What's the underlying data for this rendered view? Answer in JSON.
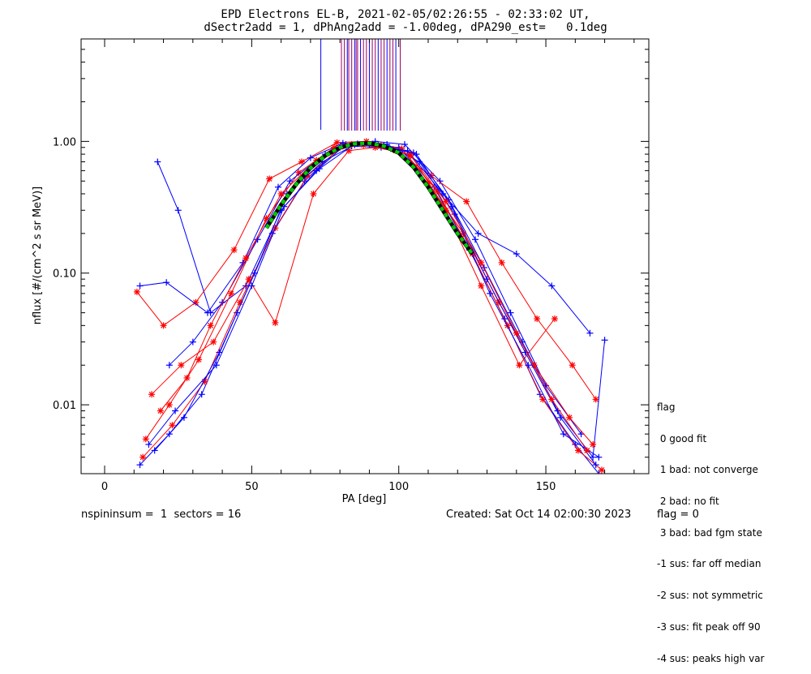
{
  "header": {
    "title_line1": "EPD Electrons EL-B, 2021-02-05/02:26:55 - 02:33:02 UT,",
    "title_line2": "dSectr2add = 1, dPhAng2add = -1.00deg, dPA290_est=   0.1deg"
  },
  "footer": {
    "left": "nspininsum =  1  sectors = 16",
    "created": "Created: Sat Oct 14 02:00:30 2023",
    "flag": "flag = 0"
  },
  "legend": {
    "title": "flag",
    "items": [
      " 0 good fit",
      " 1 bad: not converge",
      " 2 bad: no fit",
      " 3 bad: bad fgm state",
      "-1 sus: far off median",
      "-2 sus: not symmetric",
      "-3 sus: fit peak off 90",
      "-4 sus: peaks high var"
    ]
  },
  "colors": {
    "series_blue": "#0000ff",
    "series_red": "#ff0000",
    "fit_green": "#00cc00",
    "fit_black": "#000000",
    "marker_purple": "#990066"
  },
  "chart_data": {
    "type": "line",
    "xlabel": "PA [deg]",
    "ylabel": "nflux [#/(cm^2 s sr MeV)]",
    "xlim": [
      -8,
      185
    ],
    "ylim": [
      0.003,
      6
    ],
    "yscale": "log",
    "x_ticks": [
      0,
      50,
      100,
      150
    ],
    "x_tick_labels": [
      "0",
      "50",
      "100",
      "150"
    ],
    "y_ticks": [
      0.01,
      0.1,
      1.0
    ],
    "y_tick_labels": [
      "0.01",
      "0.10",
      "1.00"
    ],
    "series": [
      {
        "color": "blue",
        "x": [
          12,
          22,
          33,
          45,
          57,
          68,
          80,
          90,
          100,
          112,
          124,
          136,
          148,
          160,
          168
        ],
        "y": [
          0.0035,
          0.006,
          0.012,
          0.05,
          0.2,
          0.5,
          0.9,
          0.95,
          0.9,
          0.45,
          0.15,
          0.045,
          0.012,
          0.005,
          0.003
        ]
      },
      {
        "color": "red",
        "x": [
          13,
          23,
          34,
          46,
          58,
          69,
          81,
          91,
          101,
          113,
          125,
          137,
          149,
          161,
          169
        ],
        "y": [
          0.004,
          0.007,
          0.015,
          0.06,
          0.22,
          0.55,
          0.92,
          0.96,
          0.88,
          0.42,
          0.14,
          0.04,
          0.011,
          0.0045,
          0.0032
        ]
      },
      {
        "color": "blue",
        "x": [
          18,
          25,
          36,
          48,
          60,
          72,
          82,
          92,
          102,
          114,
          126,
          138,
          150,
          162
        ],
        "y": [
          0.7,
          0.3,
          0.05,
          0.08,
          0.3,
          0.6,
          0.95,
          1.0,
          0.95,
          0.5,
          0.18,
          0.05,
          0.014,
          0.006
        ]
      },
      {
        "color": "red",
        "x": [
          11,
          20,
          31,
          44,
          56,
          67,
          79,
          89,
          99,
          111,
          123,
          135,
          147,
          159,
          167
        ],
        "y": [
          0.072,
          0.04,
          0.06,
          0.15,
          0.52,
          0.7,
          0.98,
          1.0,
          0.85,
          0.55,
          0.35,
          0.12,
          0.045,
          0.02,
          0.011
        ]
      },
      {
        "color": "blue",
        "x": [
          12,
          21,
          35,
          47,
          59,
          70,
          81,
          93,
          103,
          115,
          127,
          140,
          152,
          165
        ],
        "y": [
          0.08,
          0.085,
          0.05,
          0.12,
          0.45,
          0.75,
          0.97,
          0.93,
          0.85,
          0.4,
          0.2,
          0.14,
          0.08,
          0.035
        ]
      },
      {
        "color": "red",
        "x": [
          16,
          26,
          37,
          49,
          58,
          71,
          83,
          92,
          104,
          116,
          128,
          141,
          153
        ],
        "y": [
          0.012,
          0.02,
          0.03,
          0.09,
          0.042,
          0.4,
          0.85,
          0.9,
          0.8,
          0.3,
          0.08,
          0.02,
          0.045
        ]
      },
      {
        "color": "blue",
        "x": [
          15,
          24,
          38,
          50,
          61,
          73,
          84,
          94,
          105,
          117,
          129,
          142,
          154,
          166,
          170
        ],
        "y": [
          0.005,
          0.009,
          0.02,
          0.08,
          0.32,
          0.62,
          0.92,
          0.9,
          0.82,
          0.36,
          0.11,
          0.03,
          0.009,
          0.004,
          0.031
        ]
      },
      {
        "color": "red",
        "x": [
          14,
          22,
          32,
          43,
          55,
          66,
          78,
          88,
          98,
          110,
          122,
          134,
          146,
          158,
          166
        ],
        "y": [
          0.0055,
          0.01,
          0.022,
          0.07,
          0.26,
          0.58,
          0.9,
          0.94,
          0.87,
          0.48,
          0.2,
          0.06,
          0.02,
          0.008,
          0.005
        ]
      },
      {
        "color": "blue",
        "x": [
          17,
          27,
          39,
          51,
          62,
          74,
          85,
          95,
          106,
          118,
          130,
          143,
          155,
          167
        ],
        "y": [
          0.0045,
          0.008,
          0.025,
          0.1,
          0.4,
          0.7,
          0.94,
          0.92,
          0.8,
          0.32,
          0.09,
          0.025,
          0.008,
          0.0035
        ]
      },
      {
        "color": "blue",
        "x": [
          22,
          30,
          40,
          52,
          63,
          75,
          86,
          96,
          107,
          119,
          131,
          144,
          156,
          168
        ],
        "y": [
          0.02,
          0.03,
          0.06,
          0.18,
          0.5,
          0.8,
          0.96,
          0.95,
          0.7,
          0.28,
          0.07,
          0.02,
          0.006,
          0.004
        ]
      },
      {
        "color": "red",
        "x": [
          19,
          28,
          36,
          48,
          60,
          72,
          84,
          94,
          104,
          116,
          128,
          140,
          152,
          164
        ],
        "y": [
          0.009,
          0.016,
          0.04,
          0.13,
          0.4,
          0.72,
          0.95,
          0.93,
          0.78,
          0.35,
          0.12,
          0.035,
          0.011,
          0.0045
        ]
      }
    ],
    "fit_curve": {
      "x": [
        55,
        60,
        65,
        70,
        75,
        80,
        85,
        90,
        95,
        100,
        105,
        110,
        115,
        120,
        125
      ],
      "y": [
        0.22,
        0.33,
        0.47,
        0.63,
        0.78,
        0.9,
        0.96,
        0.97,
        0.92,
        0.82,
        0.64,
        0.45,
        0.3,
        0.2,
        0.14
      ]
    },
    "marker_lines_x": [
      73.5,
      80.5,
      81.5,
      82.5,
      83,
      84,
      85,
      85.5,
      86,
      87,
      88,
      89,
      90,
      91,
      92,
      93,
      94,
      95,
      96,
      97,
      98,
      99,
      100.5
    ]
  }
}
